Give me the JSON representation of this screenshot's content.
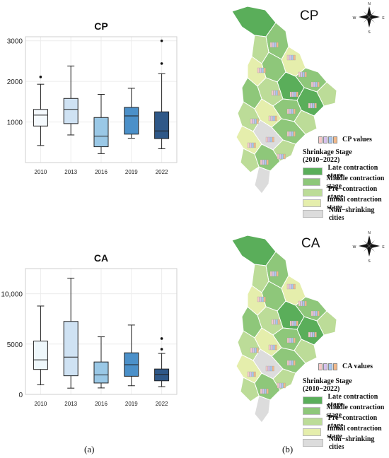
{
  "chart_data": [
    {
      "type": "box",
      "title": "CP",
      "categories": [
        "2010",
        "2013",
        "2016",
        "2019",
        "2022"
      ],
      "ylim": [
        0,
        3100
      ],
      "yticks": [
        1000,
        2000,
        3000
      ],
      "ytick_labels": [
        "1000",
        "2000",
        "3000"
      ],
      "grid": true,
      "colors": [
        "#f4f9fd",
        "#cfe2f3",
        "#9ac8e6",
        "#4b90c9",
        "#2f5888"
      ],
      "series": [
        {
          "category": "2010",
          "whisker_low": 420,
          "q1": 900,
          "median": 1170,
          "q3": 1310,
          "whisker_high": 1930,
          "outliers": [
            2110
          ]
        },
        {
          "category": "2013",
          "whisker_low": 680,
          "q1": 960,
          "median": 1310,
          "q3": 1580,
          "whisker_high": 2380,
          "outliers": []
        },
        {
          "category": "2016",
          "whisker_low": 220,
          "q1": 390,
          "median": 650,
          "q3": 1110,
          "whisker_high": 1680,
          "outliers": []
        },
        {
          "category": "2019",
          "whisker_low": 600,
          "q1": 700,
          "median": 1150,
          "q3": 1360,
          "whisker_high": 1830,
          "outliers": []
        },
        {
          "category": "2022",
          "whisker_low": 340,
          "q1": 590,
          "median": 780,
          "q3": 1250,
          "whisker_high": 2190,
          "outliers": [
            2440,
            3000
          ]
        }
      ]
    },
    {
      "type": "box",
      "title": "CA",
      "categories": [
        "2010",
        "2013",
        "2016",
        "2019",
        "2022"
      ],
      "ylim": [
        0,
        12500
      ],
      "yticks": [
        0,
        5000,
        10000
      ],
      "ytick_labels": [
        "0",
        "5000",
        "10,000"
      ],
      "grid": true,
      "colors": [
        "#eef7fb",
        "#cfe2f3",
        "#9ac8e6",
        "#4b90c9",
        "#2f5888"
      ],
      "series": [
        {
          "category": "2010",
          "whisker_low": 950,
          "q1": 2480,
          "median": 3430,
          "q3": 5300,
          "whisker_high": 8780,
          "outliers": []
        },
        {
          "category": "2013",
          "whisker_low": 620,
          "q1": 1850,
          "median": 3700,
          "q3": 7250,
          "whisker_high": 11550,
          "outliers": []
        },
        {
          "category": "2016",
          "whisker_low": 640,
          "q1": 1130,
          "median": 1940,
          "q3": 3220,
          "whisker_high": 5720,
          "outliers": []
        },
        {
          "category": "2019",
          "whisker_low": 860,
          "q1": 1800,
          "median": 2950,
          "q3": 4130,
          "whisker_high": 6890,
          "outliers": []
        },
        {
          "category": "2022",
          "whisker_low": 770,
          "q1": 1350,
          "median": 1980,
          "q3": 2520,
          "whisker_high": 4070,
          "outliers": [
            4490,
            5550
          ]
        }
      ]
    }
  ],
  "captions": {
    "a": "(a)",
    "b": "(b)"
  },
  "maps": [
    {
      "title": "CP",
      "values_label": "CP values",
      "legend_title": "Shrinkage Stage (2010−2022)",
      "legend": [
        {
          "label": "Late contraction stage",
          "color": "#5aae5a"
        },
        {
          "label": "Middle contraction stage",
          "color": "#8ec77a"
        },
        {
          "label": "Pre−contraction stage",
          "color": "#bcdc98"
        },
        {
          "label": "Initial contraction stage",
          "color": "#e5eeac"
        },
        {
          "label": "Non−shrinking cities",
          "color": "#dcdcdc"
        }
      ]
    },
    {
      "title": "CA",
      "values_label": "CA values",
      "legend_title": "Shrinkage Stage (2010−2022)",
      "legend": [
        {
          "label": "Late contraction stage",
          "color": "#5aae5a"
        },
        {
          "label": "Middle contraction stage",
          "color": "#8ec77a"
        },
        {
          "label": "Pre−contraction stage",
          "color": "#bcdc98"
        },
        {
          "label": "Initial contraction stage",
          "color": "#e5eeac"
        },
        {
          "label": "Non−shrinking cities",
          "color": "#dcdcdc"
        }
      ]
    }
  ],
  "compass": {
    "n": "N",
    "s": "S",
    "e": "E",
    "w": "W"
  },
  "mini_bar_colors": [
    "#f6c9c9",
    "#d7c1ee",
    "#a9c8f0",
    "#f3b98a"
  ]
}
